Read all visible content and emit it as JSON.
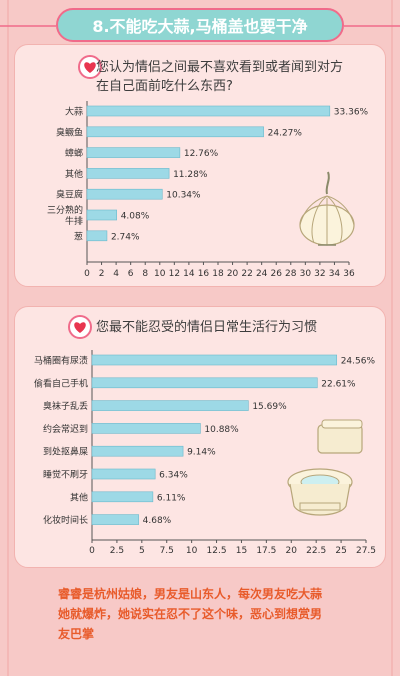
{
  "header": {
    "title": "8.不能吃大蒜,马桶盖也要干净"
  },
  "chart_data": [
    {
      "type": "bar",
      "orientation": "horizontal",
      "title": "您认为情侣之间最不喜欢看到或者闻到对方在自己面前吃什么东西?",
      "categories": [
        "大蒜",
        "臭鳜鱼",
        "蟑螂",
        "其他",
        "臭豆腐",
        "三分熟的牛排",
        "葱"
      ],
      "category_lines": [
        [
          "大蒜"
        ],
        [
          "臭鳜鱼"
        ],
        [
          "蟑螂"
        ],
        [
          "其他"
        ],
        [
          "臭豆腐"
        ],
        [
          "三分熟的",
          "牛排"
        ],
        [
          "葱"
        ]
      ],
      "values": [
        33.36,
        24.27,
        12.76,
        11.28,
        10.34,
        4.08,
        2.74
      ],
      "value_labels": [
        "33.36%",
        "24.27%",
        "12.76%",
        "11.28%",
        "10.34%",
        "4.08%",
        "2.74%"
      ],
      "xlim": [
        0,
        36
      ],
      "xticks": [
        0,
        2,
        4,
        6,
        8,
        10,
        12,
        14,
        16,
        18,
        20,
        22,
        24,
        26,
        28,
        30,
        32,
        34,
        36
      ],
      "bar_color": "#9dd9e6"
    },
    {
      "type": "bar",
      "orientation": "horizontal",
      "title": "您最不能忍受的情侣日常生活行为习惯",
      "categories": [
        "马桶圈有尿渍",
        "偷看自己手机",
        "臭袜子乱丢",
        "约会常迟到",
        "到处抠鼻屎",
        "睡觉不刷牙",
        "其他",
        "化妆时间长"
      ],
      "category_lines": [
        [
          "马桶圈有尿渍"
        ],
        [
          "偷看自己手机"
        ],
        [
          "臭袜子乱丢"
        ],
        [
          "约会常迟到"
        ],
        [
          "到处抠鼻屎"
        ],
        [
          "睡觉不刷牙"
        ],
        [
          "其他"
        ],
        [
          "化妆时间长"
        ]
      ],
      "values": [
        24.56,
        22.61,
        15.69,
        10.88,
        9.14,
        6.34,
        6.11,
        4.68
      ],
      "value_labels": [
        "24.56%",
        "22.61%",
        "15.69%",
        "10.88%",
        "9.14%",
        "6.34%",
        "6.11%",
        "4.68%"
      ],
      "xlim": [
        0,
        27.5
      ],
      "xticks": [
        0,
        2.5,
        5,
        7.5,
        10,
        12.5,
        15,
        17.5,
        20,
        22.5,
        25,
        27.5
      ],
      "xtick_labels": [
        "0",
        "2.5",
        "5",
        "7.5",
        "10",
        "12.5",
        "15",
        "17.5",
        "20",
        "22.5",
        "25",
        "27.5"
      ],
      "bar_color": "#9dd9e6"
    }
  ],
  "footer": {
    "line1": "睿睿是杭州姑娘，男友是山东人，每次男友吃大蒜",
    "line2": "她就爆炸，她说实在忍不了这个味，恶心到想赏男",
    "line3": "友巴掌"
  },
  "colors": {
    "accent": "#f06b8a",
    "title_bg": "#8fd6d2",
    "bar": "#9dd9e6",
    "footer_text": "#e85b2b"
  }
}
